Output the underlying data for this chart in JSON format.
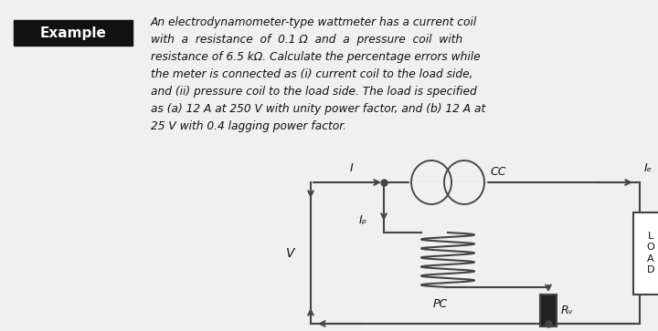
{
  "bg_color": "#f0f0f0",
  "example_box_color": "#111111",
  "example_text": "Example",
  "example_text_color": "#ffffff",
  "body_text_lines": [
    "An electrodynamometer-type wattmeter has a current coil",
    "with  a  resistance  of  0.1 Ω  and  a  pressure  coil  with",
    "resistance of 6.5 kΩ. Calculate the percentage errors while",
    "the meter is connected as (i) current coil to the load side,",
    "and (ii) pressure coil to the load side. The load is specified",
    "as (a) 12 A at 250 V with unity power factor, and (b) 12 A at",
    "25 V with 0.4 lagging power factor."
  ],
  "circuit_line_color": "#444444",
  "label_I": "I",
  "label_Ie": "Iₑ",
  "label_Ip": "Iₚ",
  "label_V": "V",
  "label_CC": "CC",
  "label_PC": "PC",
  "label_Rv": "Rᵥ",
  "label_LOAD": "L\nO\nA\nD"
}
